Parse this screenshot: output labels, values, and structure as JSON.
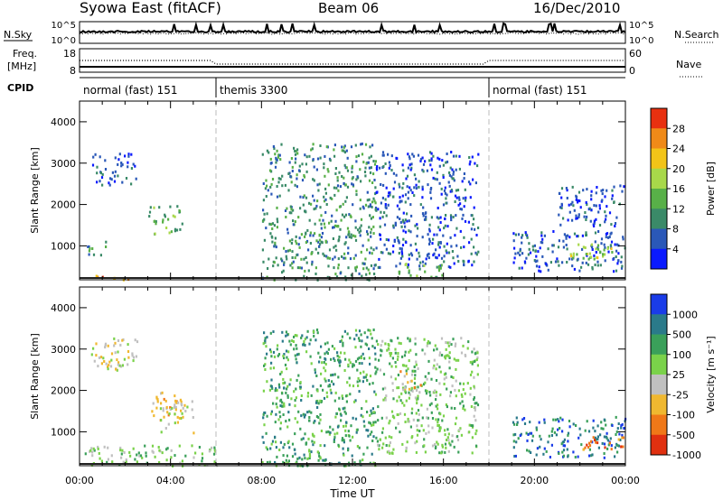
{
  "header": {
    "station": "Syowa East (fitACF)",
    "beam": "Beam 06",
    "date": "16/Dec/2010"
  },
  "noise_panel": {
    "left_label": "N.Sky",
    "right_label": "N.Search",
    "ticks_left": [
      "10^5",
      "10^0"
    ],
    "ticks_right": [
      "10^5",
      "10^0"
    ]
  },
  "freq_panel": {
    "left_label_1": "Freq.",
    "left_label_2": "[MHz]",
    "right_label": "Nave",
    "ticks_left": [
      "18",
      "8"
    ],
    "ticks_right": [
      "60",
      "0"
    ]
  },
  "cpid_panel": {
    "label": "CPID",
    "modes": [
      {
        "name": "normal (fast) 151",
        "start_hour": 0
      },
      {
        "name": "themis 3300",
        "start_hour": 6
      },
      {
        "name": "normal (fast) 151",
        "start_hour": 18
      }
    ]
  },
  "x_axis": {
    "label": "Time UT",
    "ticks": [
      "00:00",
      "04:00",
      "08:00",
      "12:00",
      "16:00",
      "20:00",
      "00:00"
    ]
  },
  "chart_data": [
    {
      "type": "heatmap",
      "name": "power",
      "ylabel": "Slant Range [km]",
      "xlim": [
        0,
        24
      ],
      "ylim": [
        180,
        4500
      ],
      "yticks": [
        "1000",
        "2000",
        "3000",
        "4000"
      ],
      "colorbar_label": "Power [dB]",
      "colorbar_ticks": [
        "4",
        "8",
        "12",
        "16",
        "20",
        "24",
        "28"
      ],
      "colors": [
        "#0a1aff",
        "#2a58b8",
        "#3a8a68",
        "#58b048",
        "#a8d84a",
        "#f2c418",
        "#f08a18",
        "#e83010"
      ],
      "regions": [
        {
          "t": [
            0.5,
            2.5
          ],
          "r": [
            2500,
            3300
          ],
          "level": 1
        },
        {
          "t": [
            0.3,
            1.2
          ],
          "r": [
            800,
            1200
          ],
          "level": 2
        },
        {
          "t": [
            3.0,
            4.5
          ],
          "r": [
            1300,
            2000
          ],
          "level": 3
        },
        {
          "t": [
            0.5,
            2.2
          ],
          "r": [
            200,
            320
          ],
          "level": 6
        },
        {
          "t": [
            8.0,
            13.0
          ],
          "r": [
            200,
            3500
          ],
          "level": 2
        },
        {
          "t": [
            13.0,
            17.5
          ],
          "r": [
            500,
            3300
          ],
          "level": 1
        },
        {
          "t": [
            14.0,
            16.0
          ],
          "r": [
            250,
            600
          ],
          "level": 3
        },
        {
          "t": [
            19.0,
            24.0
          ],
          "r": [
            400,
            1400
          ],
          "level": 1
        },
        {
          "t": [
            21.5,
            23.5
          ],
          "r": [
            700,
            1100
          ],
          "level": 4
        },
        {
          "t": [
            21.0,
            24.0
          ],
          "r": [
            1500,
            2500
          ],
          "level": 1
        }
      ]
    },
    {
      "type": "heatmap",
      "name": "velocity",
      "ylabel": "Slant Range [km]",
      "xlim": [
        0,
        24
      ],
      "ylim": [
        180,
        4500
      ],
      "yticks": [
        "1000",
        "2000",
        "3000",
        "4000"
      ],
      "colorbar_label": "Velocity [m s⁻¹]",
      "colorbar_ticks": [
        "1000",
        "500",
        "100",
        "25",
        "-25",
        "-100",
        "-500",
        "-1000"
      ],
      "colors": [
        "#1a3ce8",
        "#2a7a8a",
        "#3aa05a",
        "#7ad24a",
        "#c0c0c0",
        "#f0b830",
        "#f07818",
        "#e03010"
      ],
      "regions": [
        {
          "t": [
            0.5,
            2.5
          ],
          "r": [
            2500,
            3300
          ],
          "level": 4
        },
        {
          "t": [
            3.0,
            4.5
          ],
          "r": [
            1300,
            2000
          ],
          "level": 5
        },
        {
          "t": [
            3.5,
            5.0
          ],
          "r": [
            1000,
            1800
          ],
          "level": 4
        },
        {
          "t": [
            0.2,
            6.0
          ],
          "r": [
            200,
            700
          ],
          "level": 3
        },
        {
          "t": [
            8.0,
            13.0
          ],
          "r": [
            200,
            3500
          ],
          "level": 2
        },
        {
          "t": [
            13.0,
            17.5
          ],
          "r": [
            500,
            3300
          ],
          "level": 3
        },
        {
          "t": [
            14.0,
            15.0
          ],
          "r": [
            1900,
            2500
          ],
          "level": 5
        },
        {
          "t": [
            19.0,
            24.0
          ],
          "r": [
            400,
            1400
          ],
          "level": 1
        },
        {
          "t": [
            22.0,
            24.0
          ],
          "r": [
            600,
            900
          ],
          "level": 6
        }
      ]
    }
  ]
}
